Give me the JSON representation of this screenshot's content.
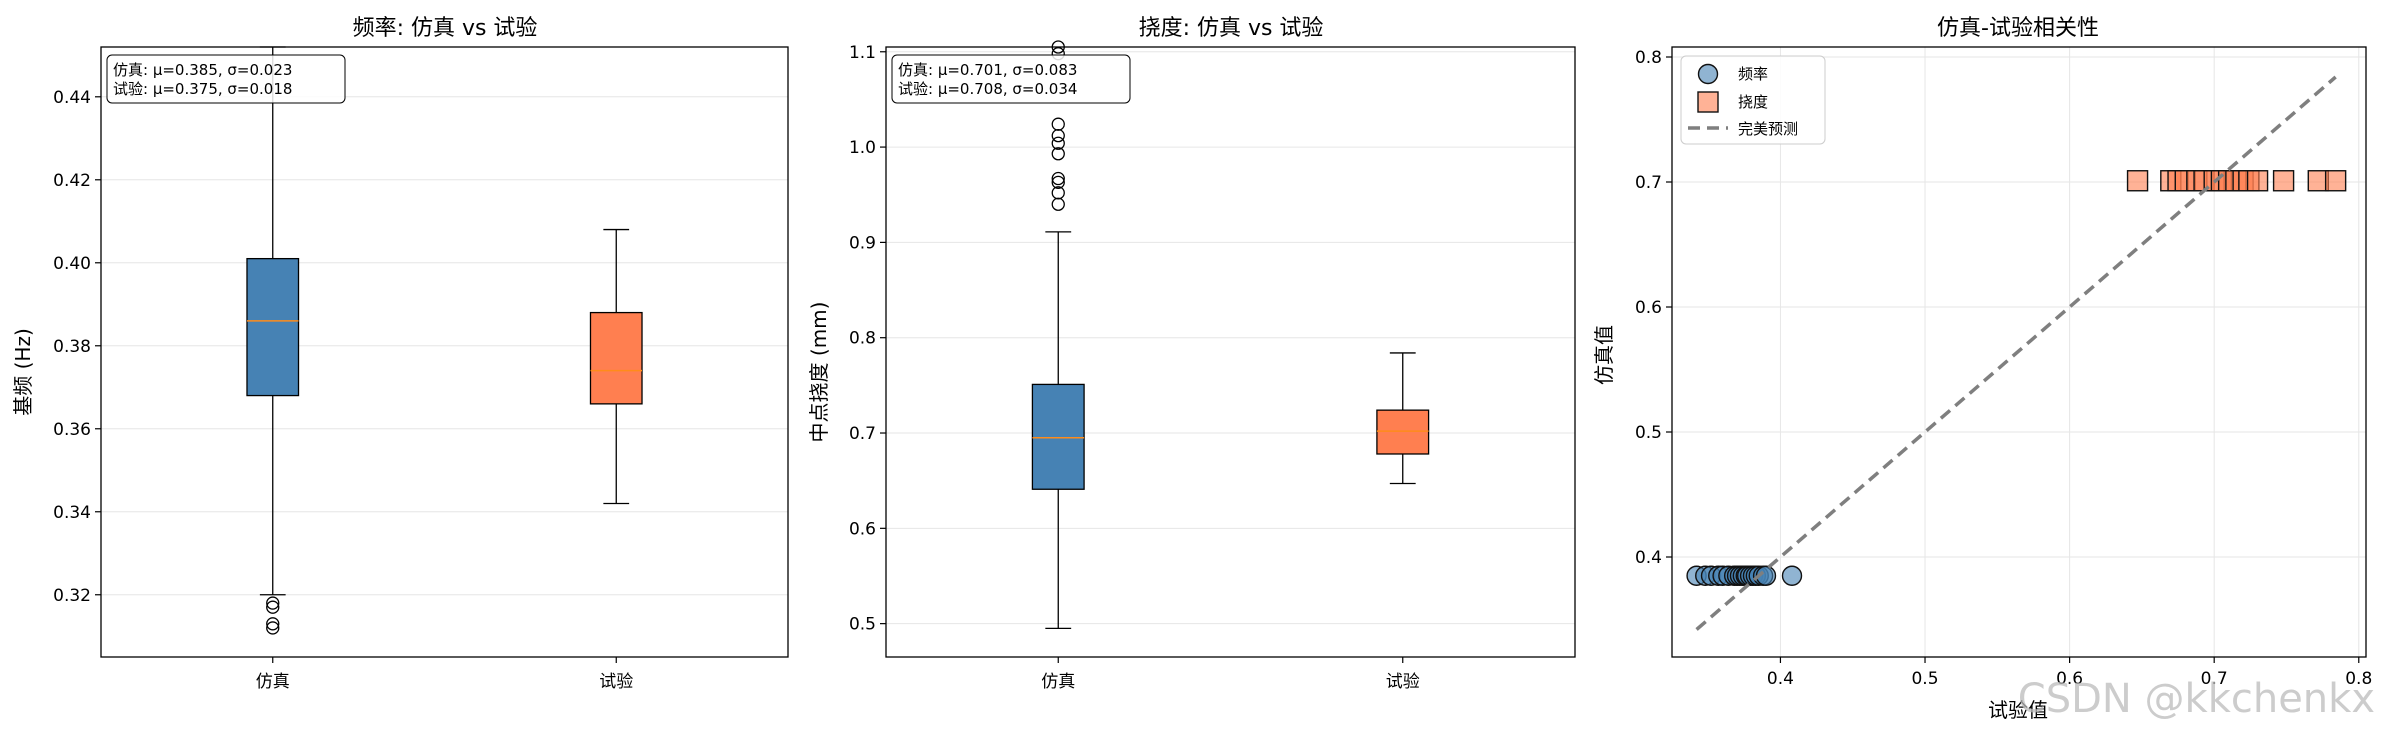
{
  "chart_data": [
    {
      "type": "box",
      "title": "频率: 仿真 vs 试验",
      "xlabel": "",
      "ylabel": "基频 (Hz)",
      "ylim": [
        0.305,
        0.452
      ],
      "yticks": [
        0.32,
        0.34,
        0.36,
        0.38,
        0.4,
        0.42,
        0.44
      ],
      "categories": [
        "仿真",
        "试验"
      ],
      "colors": [
        "#4682B4",
        "#FF7F50"
      ],
      "boxes": [
        {
          "whisker_low": 0.32,
          "q1": 0.368,
          "median": 0.386,
          "q3": 0.401,
          "whisker_high": 0.452,
          "outliers": [
            0.318,
            0.317,
            0.313,
            0.312
          ]
        },
        {
          "whisker_low": 0.342,
          "q1": 0.366,
          "median": 0.374,
          "q3": 0.388,
          "whisker_high": 0.408,
          "outliers": []
        }
      ],
      "stats_box": [
        "仿真: μ=0.385, σ=0.023",
        "试验: μ=0.375, σ=0.018"
      ],
      "grid": "y"
    },
    {
      "type": "box",
      "title": "挠度: 仿真 vs 试验",
      "xlabel": "",
      "ylabel": "中点挠度 (mm)",
      "ylim": [
        0.465,
        1.105
      ],
      "yticks": [
        0.5,
        0.6,
        0.7,
        0.8,
        0.9,
        1.0,
        1.1
      ],
      "categories": [
        "仿真",
        "试验"
      ],
      "colors": [
        "#4682B4",
        "#FF7F50"
      ],
      "boxes": [
        {
          "whisker_low": 0.495,
          "q1": 0.641,
          "median": 0.695,
          "q3": 0.751,
          "whisker_high": 0.911,
          "outliers": [
            1.105,
            1.098,
            1.024,
            1.012,
            1.004,
            0.993,
            0.967,
            0.963,
            0.952,
            0.94
          ]
        },
        {
          "whisker_low": 0.647,
          "q1": 0.678,
          "median": 0.702,
          "q3": 0.724,
          "whisker_high": 0.784,
          "outliers": []
        }
      ],
      "stats_box": [
        "仿真: μ=0.701, σ=0.083",
        "试验: μ=0.708, σ=0.034"
      ],
      "grid": "y"
    },
    {
      "type": "scatter",
      "title": "仿真-试验相关性",
      "xlabel": "试验值",
      "ylabel": "仿真值",
      "xlim": [
        0.325,
        0.805
      ],
      "ylim": [
        0.32,
        0.808
      ],
      "xticks": [
        0.4,
        0.5,
        0.6,
        0.7,
        0.8
      ],
      "yticks": [
        0.4,
        0.5,
        0.6,
        0.7,
        0.8
      ],
      "series": [
        {
          "name": "频率",
          "marker": "circle",
          "color": "#4682B4",
          "y": 0.385,
          "x": [
            0.342,
            0.348,
            0.352,
            0.357,
            0.36,
            0.364,
            0.368,
            0.37,
            0.372,
            0.374,
            0.376,
            0.377,
            0.379,
            0.381,
            0.383,
            0.385,
            0.388,
            0.39,
            0.408
          ]
        },
        {
          "name": "挠度",
          "marker": "square",
          "color": "#FF7F50",
          "y": 0.701,
          "x": [
            0.647,
            0.67,
            0.675,
            0.68,
            0.688,
            0.693,
            0.7,
            0.705,
            0.71,
            0.715,
            0.72,
            0.724,
            0.73,
            0.748,
            0.772,
            0.784
          ]
        },
        {
          "name": "完美预测",
          "line": "dashed",
          "color": "#7f7f7f",
          "x": [
            0.342,
            0.784
          ],
          "y": [
            0.342,
            0.784
          ]
        }
      ],
      "grid": "both",
      "legend": "top-left"
    }
  ],
  "watermark": "CSDN @kkchenkx"
}
